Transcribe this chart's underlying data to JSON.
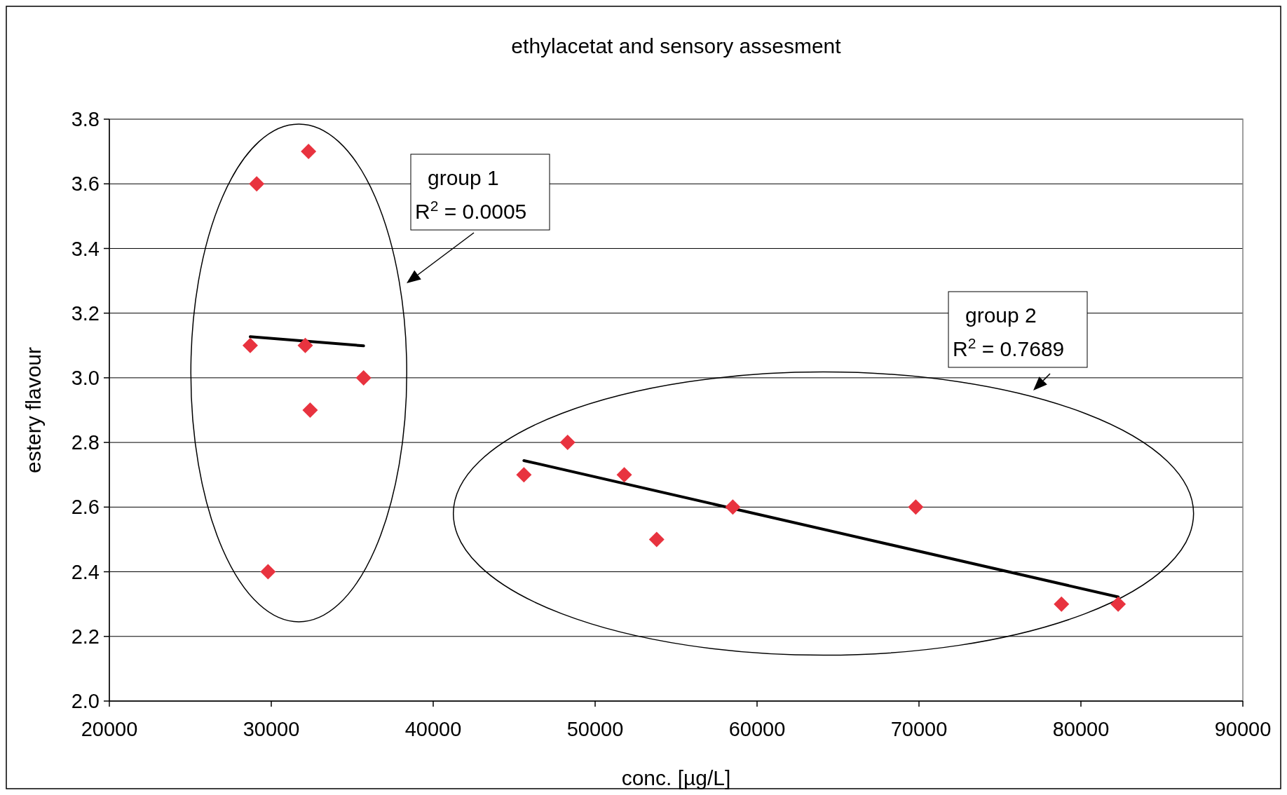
{
  "chart_data": {
    "type": "scatter",
    "title": "ethylacetat and sensory assesment",
    "xlabel": "conc. [µg/L]",
    "ylabel": "estery flavour",
    "xlim": [
      20000,
      90000
    ],
    "xticks": [
      20000,
      30000,
      40000,
      50000,
      60000,
      70000,
      80000,
      90000
    ],
    "ylim": [
      2.0,
      3.8
    ],
    "yticks": [
      {
        "value": 2.0,
        "label": "2.0"
      },
      {
        "value": 2.2,
        "label": "2.2"
      },
      {
        "value": 2.4,
        "label": "2.4"
      },
      {
        "value": 2.6,
        "label": "2.6"
      },
      {
        "value": 2.8,
        "label": "2.8"
      },
      {
        "value": 3.0,
        "label": "3.0"
      },
      {
        "value": 3.2,
        "label": "3.2"
      },
      {
        "value": 3.4,
        "label": "3.4"
      },
      {
        "value": 3.6,
        "label": "3.6"
      },
      {
        "value": 3.8,
        "label": "3.8"
      }
    ],
    "grid": "y",
    "series": [
      {
        "color": "#e8333f",
        "marker": "diamond",
        "x": [
          29100,
          32300,
          28700,
          32100,
          35700,
          32400,
          29800
        ],
        "values": [
          3.6,
          3.7,
          3.1,
          3.1,
          3.0,
          2.9,
          2.4
        ]
      },
      {
        "color": "#e8333f",
        "marker": "diamond",
        "x": [
          45600,
          48300,
          51800,
          53800,
          58500,
          69800,
          78800,
          82300
        ],
        "values": [
          2.7,
          2.8,
          2.7,
          2.5,
          2.6,
          2.6,
          2.3,
          2.3
        ]
      },
      {
        "type": "line",
        "color": "#000000",
        "x": [
          28700,
          35700
        ],
        "values": [
          3.127,
          3.099
        ]
      },
      {
        "type": "line",
        "color": "#000000",
        "x": [
          45600,
          82300
        ],
        "values": [
          2.744,
          2.322
        ]
      }
    ],
    "annotations": [
      "group 1\nR$^{2}$ = 0.0005",
      "group 2\nR$^{2}$ = 0.7689"
    ]
  }
}
